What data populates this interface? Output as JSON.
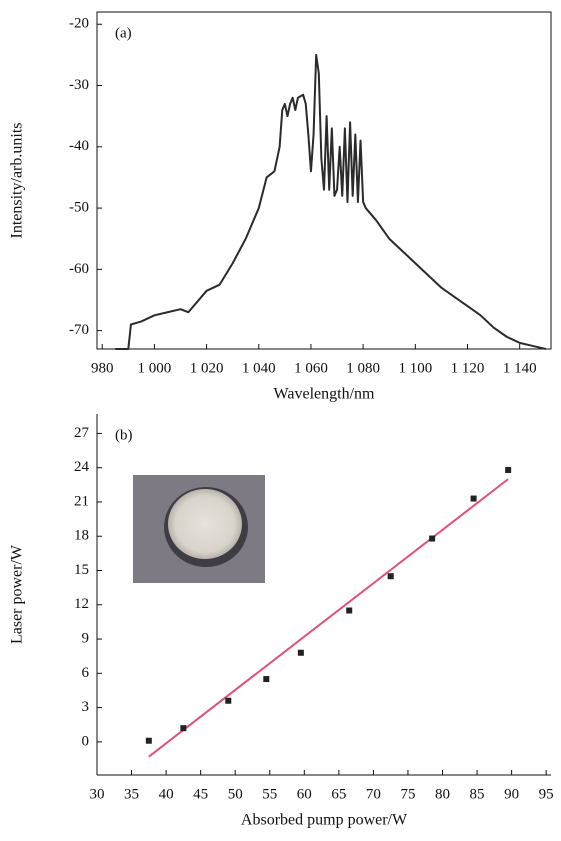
{
  "chart_data": [
    {
      "type": "line",
      "label": "(a)",
      "xlabel": "Wavelength/nm",
      "ylabel": "Intensity/arb.units",
      "color": "#2b2b2b",
      "frame": true,
      "xlim": [
        978,
        1152
      ],
      "ylim": [
        -73,
        -18
      ],
      "xticks": [
        980,
        {
          "value": 1000,
          "label": "1 000"
        },
        {
          "value": 1020,
          "label": "1 020"
        },
        {
          "value": 1040,
          "label": "1 040"
        },
        {
          "value": 1060,
          "label": "1 060"
        },
        {
          "value": 1080,
          "label": "1 080"
        },
        {
          "value": 1100,
          "label": "1 100"
        },
        {
          "value": 1120,
          "label": "1 120"
        },
        {
          "value": 1140,
          "label": "1 140"
        }
      ],
      "yticks": [
        -20,
        -30,
        -40,
        -50,
        -60,
        -70
      ],
      "x": [
        985,
        990,
        991,
        995,
        1000,
        1005,
        1010,
        1013,
        1015,
        1020,
        1025,
        1030,
        1035,
        1040,
        1043,
        1046,
        1048,
        1049,
        1050,
        1051,
        1052,
        1053,
        1054,
        1055,
        1057,
        1058,
        1059,
        1060,
        1061,
        1062,
        1063,
        1064,
        1065,
        1066,
        1067,
        1068,
        1069,
        1070,
        1071,
        1072,
        1073,
        1074,
        1075,
        1076,
        1077,
        1078,
        1079,
        1080,
        1081,
        1085,
        1090,
        1095,
        1100,
        1105,
        1110,
        1115,
        1120,
        1125,
        1130,
        1135,
        1140,
        1145,
        1150
      ],
      "values": [
        -73,
        -73,
        -69,
        -68.5,
        -67.5,
        -67,
        -66.5,
        -67,
        -66,
        -63.5,
        -62.5,
        -59,
        -55,
        -50,
        -45,
        -44,
        -40,
        -34,
        -33,
        -35,
        -33,
        -32,
        -34,
        -32,
        -31.5,
        -33,
        -38,
        -44,
        -38,
        -25,
        -28,
        -42,
        -47,
        -35,
        -47,
        -37,
        -48,
        -47,
        -40,
        -48,
        -37,
        -49,
        -36,
        -48,
        -38,
        -49,
        -39,
        -49,
        -50,
        -52,
        -55,
        -57,
        -59,
        -61,
        -63,
        -64.5,
        -66,
        -67.5,
        -69.5,
        -71,
        -72,
        -72.5,
        -73
      ]
    },
    {
      "type": "scatter",
      "label": "(b)",
      "xlabel": "Absorbed pump power/W",
      "ylabel": "Laser power/W",
      "color": "#222222",
      "frame": false,
      "xlim": [
        30,
        95.7
      ],
      "ylim": [
        -2.9,
        28.7
      ],
      "xticks": [
        30,
        35,
        40,
        45,
        50,
        55,
        60,
        65,
        70,
        75,
        80,
        85,
        90,
        95
      ],
      "yticks": [
        0,
        3,
        6,
        9,
        12,
        15,
        18,
        21,
        24,
        27
      ],
      "x": [
        37.5,
        42.5,
        49,
        54.5,
        59.5,
        66.5,
        72.5,
        78.5,
        84.5,
        89.5
      ],
      "values": [
        0.1,
        1.2,
        3.6,
        5.5,
        7.8,
        11.5,
        14.5,
        17.8,
        21.3,
        23.8
      ],
      "fit": {
        "color": "#e0507a",
        "x": [
          37.5,
          89.5
        ],
        "values": [
          -1.3,
          23
        ]
      }
    }
  ]
}
